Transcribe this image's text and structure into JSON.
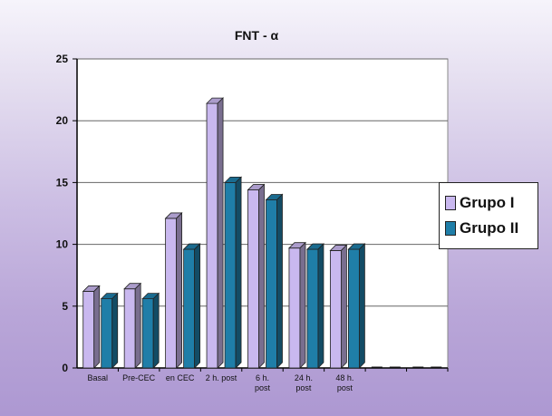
{
  "chart_data": {
    "type": "bar",
    "title": "FNT - α",
    "categories": [
      "Basal",
      "Pre-CEC",
      "en CEC",
      "2 h. post",
      "6 h.\npost",
      "24 h.\npost",
      "48 h.\npost",
      "",
      ""
    ],
    "series": [
      {
        "name": "Grupo I",
        "color": "#c9b8ef",
        "values": [
          6.2,
          6.4,
          12.1,
          21.4,
          14.4,
          9.7,
          9.5,
          0,
          0
        ]
      },
      {
        "name": "Grupo II",
        "color": "#1f7ea8",
        "values": [
          5.6,
          5.6,
          9.6,
          15.0,
          13.6,
          9.6,
          9.6,
          0,
          0
        ]
      }
    ],
    "ylim": [
      0,
      25
    ],
    "yticks": [
      0,
      5,
      10,
      15,
      20,
      25
    ],
    "xlabel": "",
    "ylabel": "",
    "grid": true,
    "legend_position": "right"
  }
}
